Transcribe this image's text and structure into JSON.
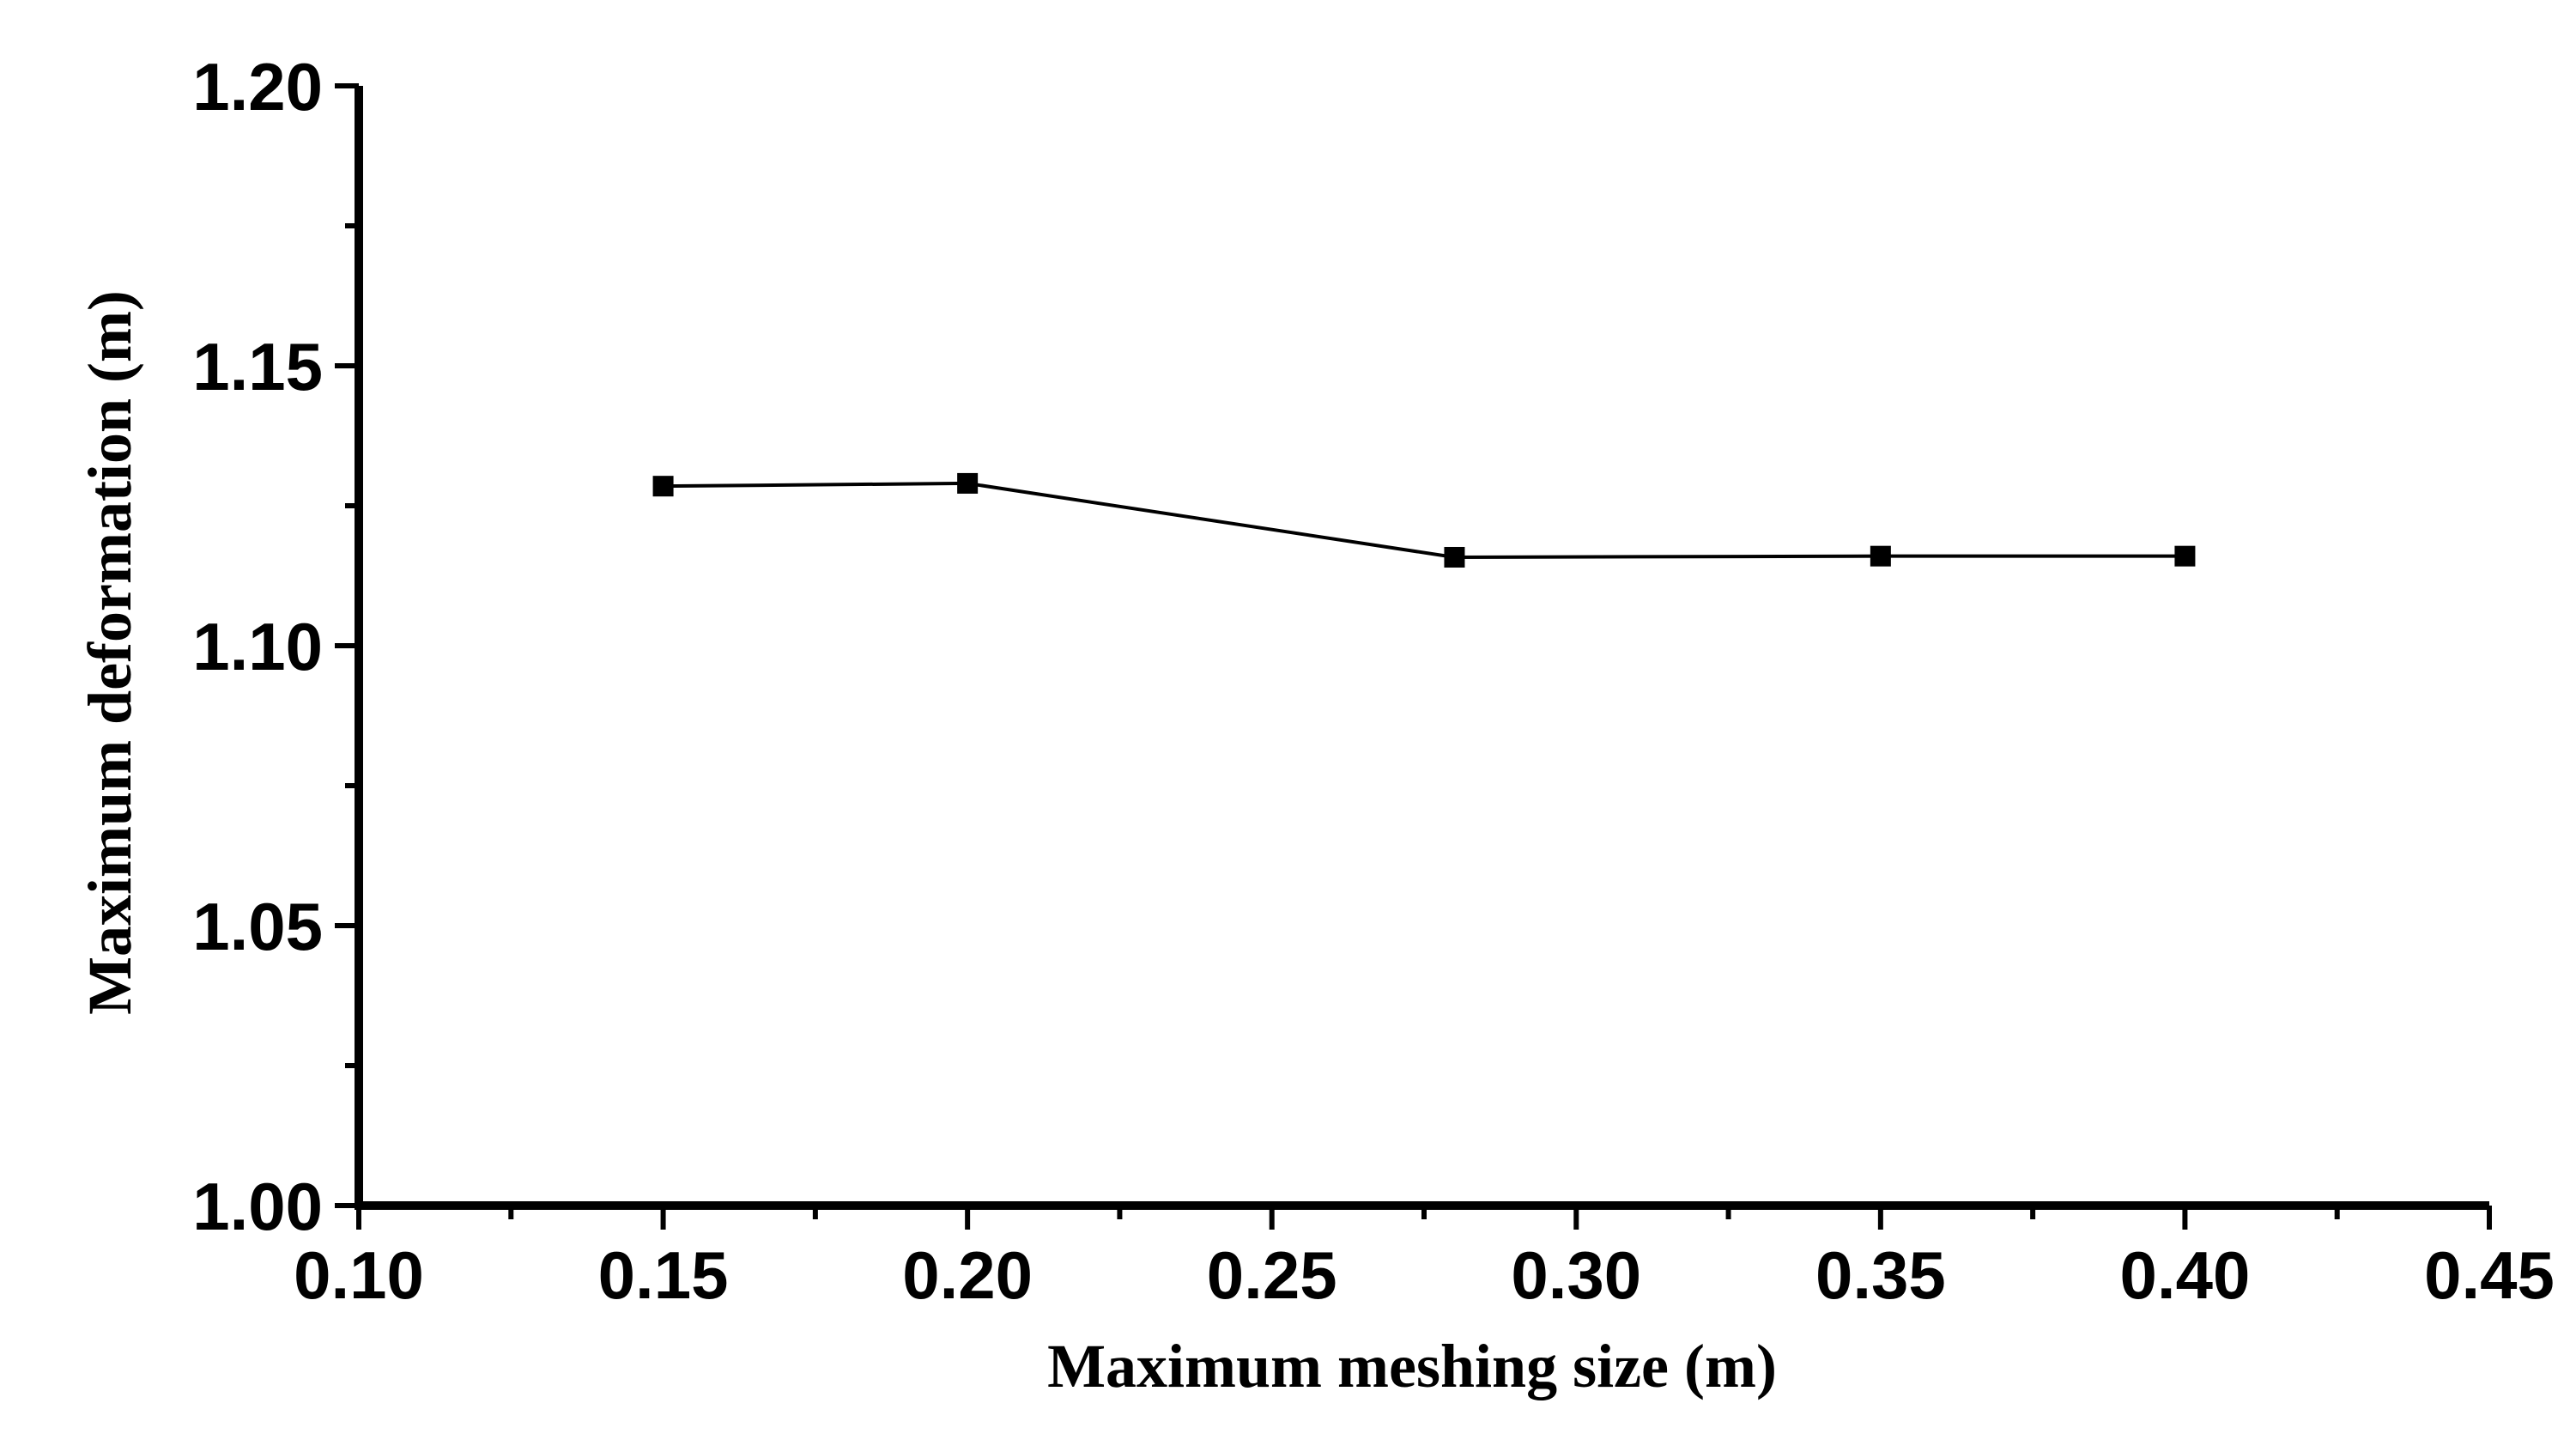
{
  "chart_data": {
    "type": "line",
    "title": "",
    "xlabel": "Maximum meshing size (m)",
    "ylabel": "Maximum deformation (m)",
    "xlim": [
      0.1,
      0.45
    ],
    "ylim": [
      1.0,
      1.2
    ],
    "x_ticks": [
      "0.10",
      "0.15",
      "0.20",
      "0.25",
      "0.30",
      "0.35",
      "0.40",
      "0.45"
    ],
    "y_ticks": [
      "1.00",
      "1.05",
      "1.10",
      "1.15",
      "1.20"
    ],
    "series": [
      {
        "x": [
          0.15,
          0.2,
          0.28,
          0.35,
          0.4
        ],
        "values": [
          1.1285,
          1.129,
          1.1158,
          1.116,
          1.116
        ]
      }
    ],
    "marker": "square",
    "line_color": "#000000",
    "grid": false,
    "legend": "none"
  }
}
